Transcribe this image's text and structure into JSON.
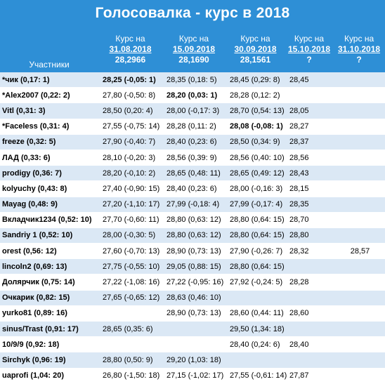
{
  "title": "Голосовалка - курс в 2018",
  "header": {
    "participants_label": "Участники",
    "columns": [
      {
        "label": "Курс на",
        "date": "31.08.2018",
        "rate": "28,2966"
      },
      {
        "label": "Курс на",
        "date": "15.09.2018",
        "rate": "28,1690"
      },
      {
        "label": "Курс на",
        "date": "30.09.2018",
        "rate": "28,1561"
      },
      {
        "label": "Курс на",
        "date": "15.10.2018",
        "rate": "?"
      },
      {
        "label": "Курс на",
        "date": "31.10.2018",
        "rate": "?"
      }
    ]
  },
  "rows": [
    {
      "name": "*чик (0,17: 1)",
      "c1": "28,25 (-0,05: 1)",
      "c2": "28,35 (0,18: 5)",
      "c3": "28,45 (0,29: 8)",
      "c4": "28,45",
      "c5": "",
      "bold": [
        1
      ]
    },
    {
      "name": "*Alex2007 (0,22: 2)",
      "c1": "27,80 (-0,50: 8)",
      "c2": "28,20 (0,03: 1)",
      "c3": "28,28 (0,12: 2)",
      "c4": "",
      "c5": "",
      "bold": [
        2
      ]
    },
    {
      "name": "Vitl (0,31: 3)",
      "c1": "28,50 (0,20: 4)",
      "c2": "28,00 (-0,17: 3)",
      "c3": "28,70 (0,54: 13)",
      "c4": "28,05",
      "c5": "",
      "bold": []
    },
    {
      "name": "*Faceless (0,31: 4)",
      "c1": "27,55 (-0,75: 14)",
      "c2": "28,28 (0,11: 2)",
      "c3": "28,08 (-0,08: 1)",
      "c4": "28,27",
      "c5": "",
      "bold": [
        3
      ]
    },
    {
      "name": "freeze (0,32: 5)",
      "c1": "27,90 (-0,40: 7)",
      "c2": "28,40 (0,23: 6)",
      "c3": "28,50 (0,34: 9)",
      "c4": "28,37",
      "c5": "",
      "bold": []
    },
    {
      "name": "ЛАД (0,33: 6)",
      "c1": "28,10 (-0,20: 3)",
      "c2": "28,56 (0,39: 9)",
      "c3": "28,56 (0,40: 10)",
      "c4": "28,56",
      "c5": "",
      "bold": []
    },
    {
      "name": "prodigy (0,36: 7)",
      "c1": "28,20 (-0,10: 2)",
      "c2": "28,65 (0,48: 11)",
      "c3": "28,65 (0,49: 12)",
      "c4": "28,43",
      "c5": "",
      "bold": []
    },
    {
      "name": "kolyuchy (0,43: 8)",
      "c1": "27,40 (-0,90: 15)",
      "c2": "28,40 (0,23: 6)",
      "c3": "28,00 (-0,16: 3)",
      "c4": "28,15",
      "c5": "",
      "bold": []
    },
    {
      "name": "Mayag (0,48: 9)",
      "c1": "27,20 (-1,10: 17)",
      "c2": "27,99 (-0,18: 4)",
      "c3": "27,99 (-0,17: 4)",
      "c4": "28,35",
      "c5": "",
      "bold": []
    },
    {
      "name": "Вкладчик1234 (0,52: 10)",
      "c1": "27,70 (-0,60: 11)",
      "c2": "28,80 (0,63: 12)",
      "c3": "28,80 (0,64: 15)",
      "c4": "28,70",
      "c5": "",
      "bold": []
    },
    {
      "name": "Sandriy 1 (0,52: 10)",
      "c1": "28,00 (-0,30: 5)",
      "c2": "28,80 (0,63: 12)",
      "c3": "28,80 (0,64: 15)",
      "c4": "28,80",
      "c5": "",
      "bold": []
    },
    {
      "name": "orest (0,56: 12)",
      "c1": "27,60 (-0,70: 13)",
      "c2": "28,90 (0,73: 13)",
      "c3": "27,90 (-0,26: 7)",
      "c4": "28,32",
      "c5": "28,57",
      "bold": []
    },
    {
      "name": "lincoln2 (0,69: 13)",
      "c1": "27,75 (-0,55: 10)",
      "c2": "29,05 (0,88: 15)",
      "c3": "28,80 (0,64: 15)",
      "c4": "",
      "c5": "",
      "bold": []
    },
    {
      "name": "Долярчик (0,75: 14)",
      "c1": "27,22 (-1,08: 16)",
      "c2": "27,22 (-0,95: 16)",
      "c3": "27,92 (-0,24: 5)",
      "c4": "28,28",
      "c5": "",
      "bold": []
    },
    {
      "name": "Очкарик (0,82: 15)",
      "c1": "27,65 (-0,65: 12)",
      "c2": "28,63 (0,46: 10)",
      "c3": "",
      "c4": "",
      "c5": "",
      "bold": []
    },
    {
      "name": "yurko81 (0,89: 16)",
      "c1": "",
      "c2": "28,90 (0,73: 13)",
      "c3": "28,60 (0,44: 11)",
      "c4": "28,60",
      "c5": "",
      "bold": []
    },
    {
      "name": "sinus/Trast (0,91: 17)",
      "c1": "28,65 (0,35: 6)",
      "c2": "",
      "c3": "29,50 (1,34: 18)",
      "c4": "",
      "c5": "",
      "bold": []
    },
    {
      "name": "10/9/9 (0,92: 18)",
      "c1": "",
      "c2": "",
      "c3": "28,40 (0,24: 6)",
      "c4": "28,40",
      "c5": "",
      "bold": []
    },
    {
      "name": "Sirchyk (0,96: 19)",
      "c1": "28,80 (0,50: 9)",
      "c2": "29,20 (1,03: 18)",
      "c3": "",
      "c4": "",
      "c5": "",
      "bold": []
    },
    {
      "name": "uaprofi (1,04: 20)",
      "c1": "26,80 (-1,50: 18)",
      "c2": "27,15 (-1,02: 17)",
      "c3": "27,55 (-0,61: 14)",
      "c4": "27,87",
      "c5": "",
      "bold": []
    }
  ]
}
